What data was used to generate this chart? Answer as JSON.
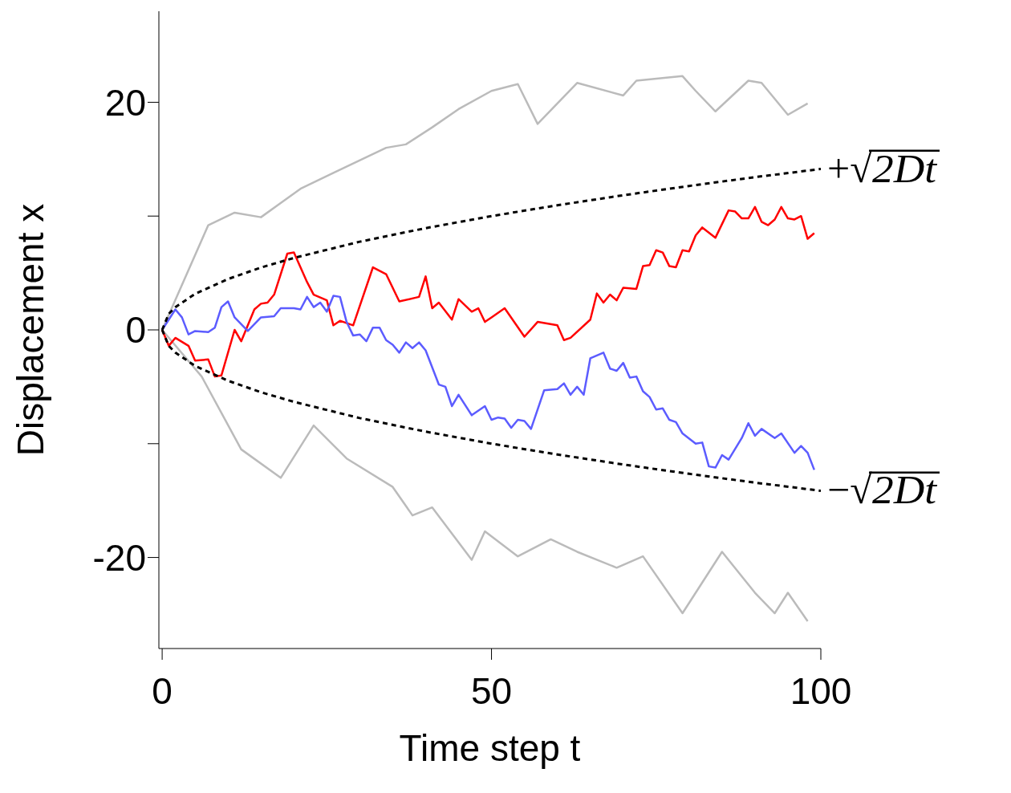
{
  "chart_data": {
    "type": "line",
    "xlabel": "Time step t",
    "ylabel": "Displacement x",
    "xlim": [
      -0.5,
      100
    ],
    "ylim": [
      -28,
      28
    ],
    "xticks": [
      0,
      {
        "value": 50,
        "label": "50"
      },
      100
    ],
    "yticks": [
      -20,
      {
        "value": -10,
        "label": null
      },
      0,
      {
        "value": 10,
        "label": null
      },
      20
    ],
    "grid": false,
    "legend": "right",
    "marker": "none",
    "series": [
      {
        "color": "#bbbbbb",
        "x": [
          0,
          7,
          11,
          15,
          21,
          26,
          34,
          37,
          41,
          45,
          50,
          54,
          57,
          63,
          70,
          72,
          79,
          81,
          84,
          89,
          91,
          95,
          98
        ],
        "values": [
          0,
          9.2,
          10.3,
          9.9,
          12.4,
          13.8,
          16,
          16.3,
          17.8,
          19.4,
          21,
          21.6,
          18.1,
          21.7,
          20.6,
          21.9,
          22.3,
          21,
          19.2,
          21.9,
          21.7,
          18.9,
          19.9
        ]
      },
      {
        "color": "#bbbbbb",
        "x": [
          0,
          6,
          12,
          18,
          23,
          28,
          35,
          38,
          41,
          47,
          49,
          54,
          59,
          63,
          69,
          73,
          79,
          85,
          90,
          93,
          95,
          98
        ],
        "values": [
          0,
          -4.1,
          -10.5,
          -13,
          -8.4,
          -11.3,
          -13.8,
          -16.3,
          -15.6,
          -20.2,
          -17.7,
          -19.9,
          -18.4,
          -19.5,
          -20.9,
          -19.9,
          -24.9,
          -19.5,
          -23.1,
          -24.9,
          -23.1,
          -25.6
        ]
      },
      {
        "color": "#ff0000",
        "x": [
          0,
          1,
          2,
          4,
          5,
          7,
          8,
          9,
          11,
          12,
          14,
          15,
          16,
          17,
          19,
          20,
          22,
          23,
          25,
          26,
          27,
          29,
          32,
          34,
          36,
          39,
          40,
          41,
          42,
          44,
          45,
          47,
          48,
          49,
          50,
          52,
          55,
          57,
          60,
          61,
          62,
          65,
          66,
          67,
          68,
          69,
          70,
          72,
          73,
          74,
          75,
          76,
          77,
          78,
          79,
          80,
          81,
          82,
          84,
          86,
          87,
          88,
          89,
          90,
          91,
          92,
          93,
          94,
          95,
          96,
          97,
          98,
          99
        ],
        "values": [
          0,
          -1.4,
          -0.7,
          -1.4,
          -2.7,
          -2.6,
          -4.1,
          -4,
          0,
          -1,
          1.8,
          2.3,
          2.4,
          3.1,
          6.7,
          6.8,
          4.2,
          3.1,
          2.6,
          0.4,
          0.8,
          0.4,
          5.5,
          4.9,
          2.5,
          2.9,
          4.7,
          1.9,
          2.4,
          0.9,
          2.7,
          1.6,
          1.9,
          0.7,
          1.1,
          1.9,
          -0.6,
          0.7,
          0.4,
          -0.9,
          -0.7,
          0.9,
          3.2,
          2.4,
          3.1,
          2.6,
          3.7,
          3.6,
          5.6,
          5.7,
          7,
          6.8,
          5.6,
          5.5,
          7,
          6.9,
          8.3,
          9,
          8.1,
          10.5,
          10.4,
          9.8,
          9.8,
          10.8,
          9.5,
          9.2,
          9.7,
          10.8,
          9.8,
          9.7,
          10,
          8,
          8.5
        ]
      },
      {
        "color": "#5c5cff",
        "x": [
          0,
          2,
          3,
          4,
          5,
          7,
          8,
          9,
          10,
          11,
          13,
          15,
          17,
          18,
          20,
          21,
          22,
          23,
          24,
          25,
          26,
          27,
          28,
          29,
          30,
          31,
          32,
          33,
          34,
          35,
          36,
          37,
          38,
          39,
          40,
          42,
          43,
          44,
          45,
          47,
          49,
          50,
          51,
          52,
          53,
          54,
          55,
          56,
          58,
          60,
          61,
          62,
          63,
          64,
          65,
          67,
          68,
          69,
          70,
          71,
          72,
          73,
          74,
          75,
          76,
          77,
          78,
          79,
          81,
          82,
          83,
          84,
          85,
          86,
          88,
          89,
          90,
          91,
          93,
          94,
          96,
          97,
          98,
          99
        ],
        "values": [
          0,
          1.8,
          1.1,
          -0.4,
          -0.1,
          -0.2,
          0.2,
          2,
          2.5,
          1.1,
          -0.1,
          1.1,
          1.2,
          1.9,
          1.9,
          1.8,
          2.9,
          2,
          2.4,
          1.6,
          3,
          2.9,
          0.7,
          -0.5,
          -0.4,
          -1,
          0.2,
          0.2,
          -0.9,
          -1.3,
          -2,
          -1.1,
          -1.6,
          -1.1,
          -1.8,
          -4.8,
          -5,
          -6.7,
          -5.7,
          -7.5,
          -6.7,
          -7.9,
          -7.7,
          -7.8,
          -8.6,
          -7.9,
          -8,
          -8.7,
          -5.3,
          -5.2,
          -4.7,
          -5.7,
          -5,
          -5.7,
          -2.5,
          -2,
          -3.4,
          -3.6,
          -2.9,
          -4.2,
          -4.1,
          -5.4,
          -5.9,
          -7,
          -6.9,
          -7.9,
          -8.1,
          -9.1,
          -10,
          -9.9,
          -12,
          -12.1,
          -11,
          -11.4,
          -9.5,
          -8.2,
          -9.3,
          -8.7,
          -9.5,
          -9.1,
          -10.8,
          -10.2,
          -10.8,
          -12.3
        ]
      },
      {
        "name": "+√2Dt",
        "color": "#000000",
        "line_style": "dashed",
        "x": [
          0,
          1,
          2,
          5,
          10,
          15,
          20,
          30,
          40,
          50,
          60,
          70,
          80,
          90,
          100
        ],
        "values": [
          0,
          1.41,
          2,
          3.16,
          4.47,
          5.48,
          6.32,
          7.75,
          8.94,
          10,
          10.95,
          11.83,
          12.65,
          13.42,
          14.14
        ]
      },
      {
        "name": "−√2Dt",
        "color": "#000000",
        "line_style": "dashed",
        "x": [
          0,
          1,
          2,
          5,
          10,
          15,
          20,
          30,
          40,
          50,
          60,
          70,
          80,
          90,
          100
        ],
        "values": [
          0,
          -1.41,
          -2,
          -3.16,
          -4.47,
          -5.48,
          -6.32,
          -7.75,
          -8.94,
          -10,
          -10.95,
          -11.83,
          -12.65,
          -13.42,
          -14.14
        ]
      }
    ]
  }
}
